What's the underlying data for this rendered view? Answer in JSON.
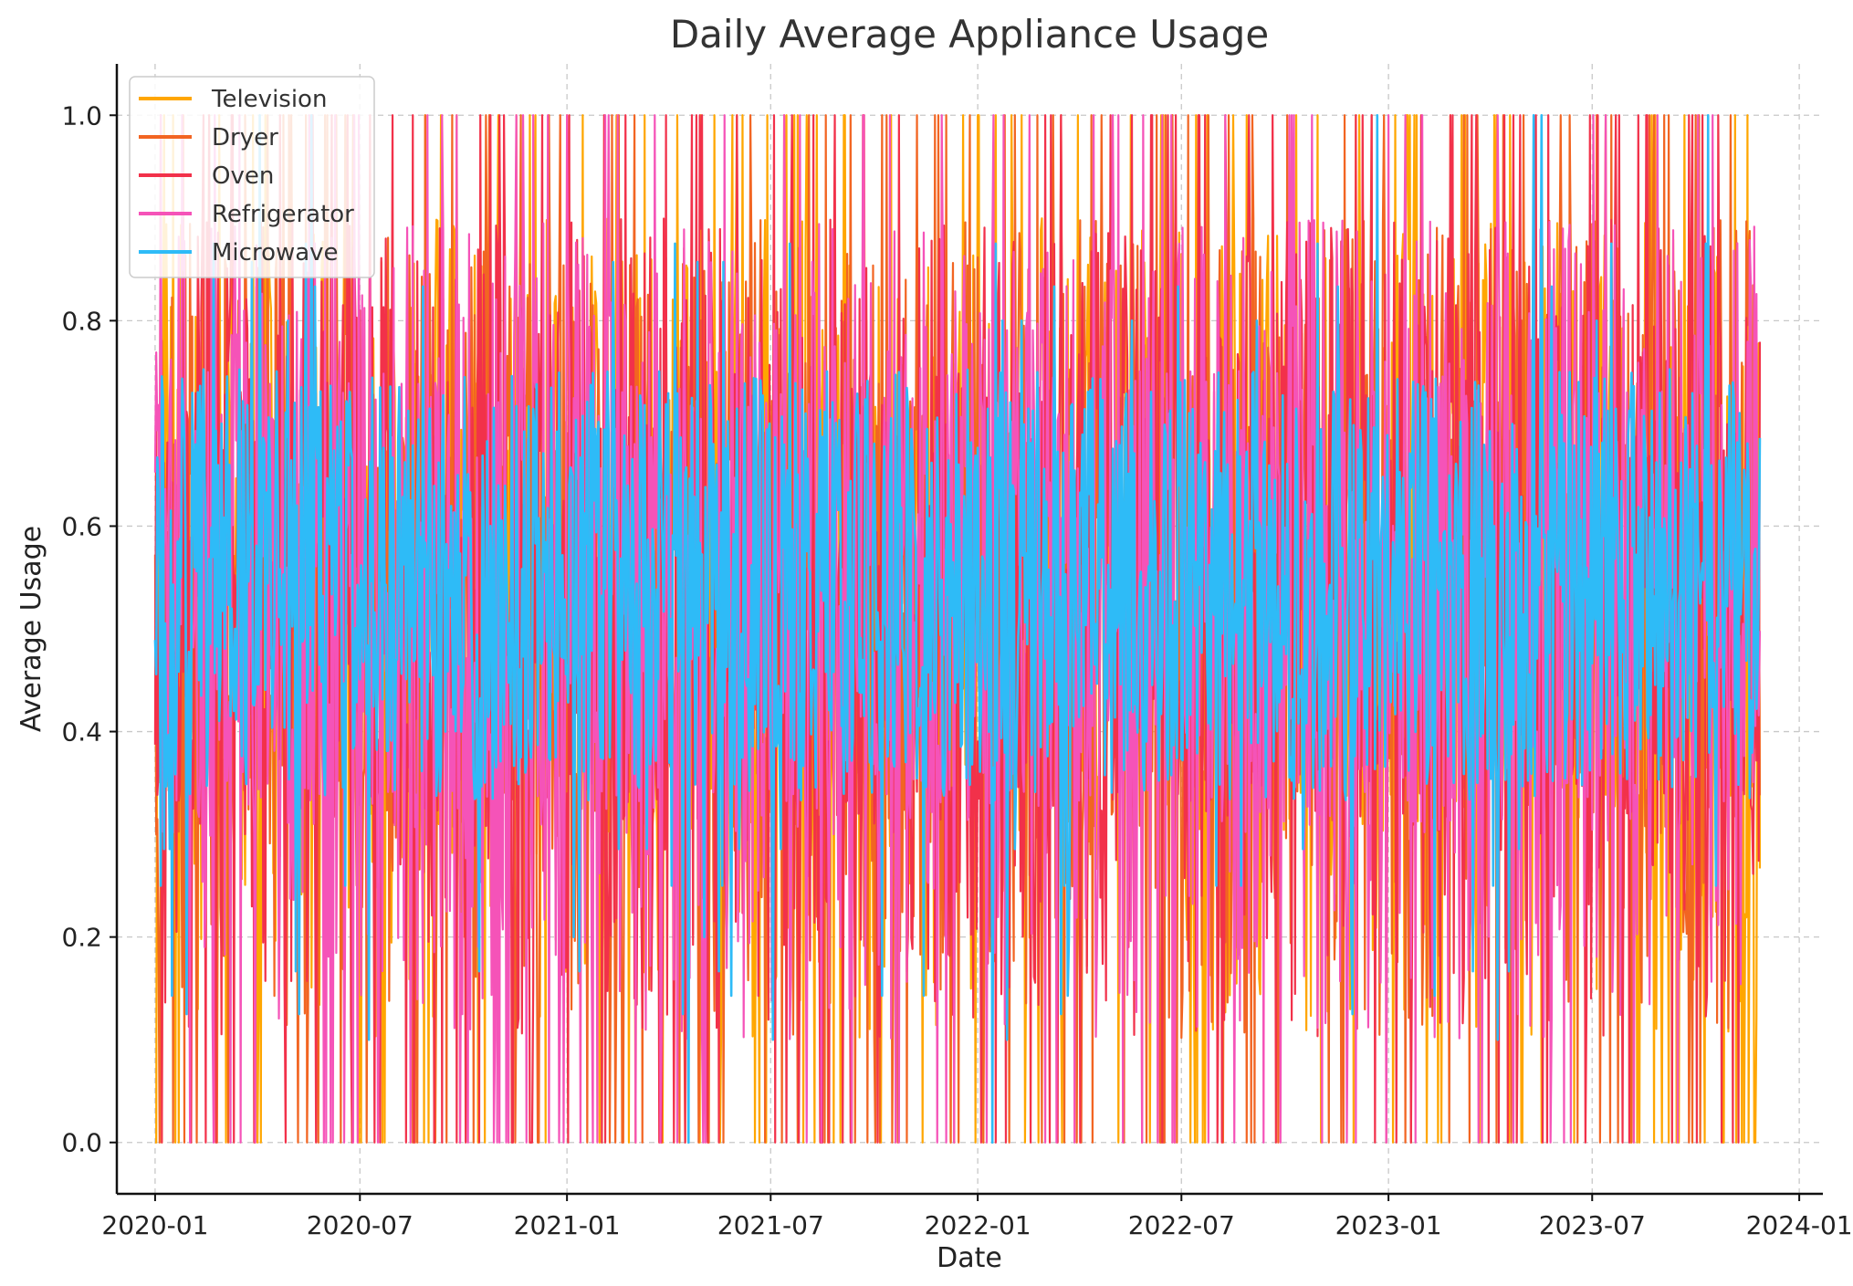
{
  "chart_data": {
    "type": "line",
    "title": "Daily Average Appliance Usage",
    "xlabel": "Date",
    "ylabel": "Average Usage",
    "xlim": [
      "2019-11-28",
      "2024-01-22"
    ],
    "ylim": [
      -0.05,
      1.05
    ],
    "x_range": [
      "2020-01-01",
      "2023-11-27"
    ],
    "x_frequency": "daily",
    "x_ticks": [
      "2020-01",
      "2020-07",
      "2021-01",
      "2021-07",
      "2022-01",
      "2022-07",
      "2023-01",
      "2023-07",
      "2024-01"
    ],
    "x_tick_dates": [
      "2020-01-01",
      "2020-07-01",
      "2021-01-01",
      "2021-07-01",
      "2022-01-01",
      "2022-07-01",
      "2023-01-01",
      "2023-07-01",
      "2024-01-01"
    ],
    "y_ticks": [
      "0.0",
      "0.2",
      "0.4",
      "0.6",
      "0.8",
      "1.0"
    ],
    "y_tick_values": [
      0,
      0.2,
      0.4,
      0.6,
      0.8,
      1.0
    ],
    "grid": true,
    "legend_position": "top-left",
    "value_range": [
      0.0,
      1.0
    ],
    "series": [
      {
        "name": "Television",
        "color": "#ffa600"
      },
      {
        "name": "Dryer",
        "color": "#f26522"
      },
      {
        "name": "Oven",
        "color": "#f2314a"
      },
      {
        "name": "Refrigerator",
        "color": "#f553b8"
      },
      {
        "name": "Microwave",
        "color": "#2ebbf7"
      }
    ]
  }
}
